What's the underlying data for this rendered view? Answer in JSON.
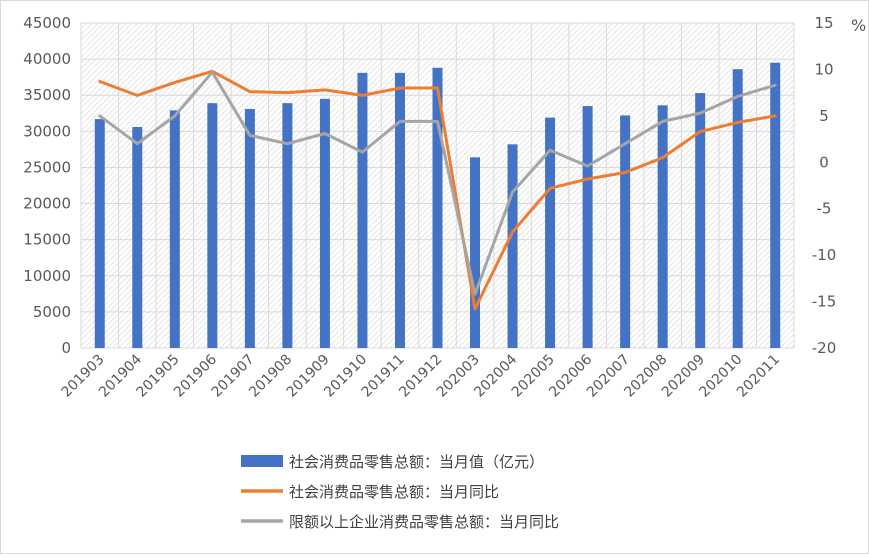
{
  "chart_data": {
    "type": "bar+line",
    "title": "",
    "categories": [
      "201903",
      "201904",
      "201905",
      "201906",
      "201907",
      "201908",
      "201909",
      "201910",
      "201911",
      "201912",
      "202003",
      "202004",
      "202005",
      "202006",
      "202007",
      "202008",
      "202009",
      "202010",
      "202011"
    ],
    "y_left": {
      "label": "",
      "ylim": [
        0,
        45000
      ],
      "ticks": [
        "0",
        "5000",
        "10000",
        "15000",
        "20000",
        "25000",
        "30000",
        "35000",
        "40000",
        "45000"
      ]
    },
    "y_right": {
      "label": "%",
      "ylim": [
        -20,
        15
      ],
      "ticks": [
        "-20",
        "-15",
        "-10",
        "-5",
        "0",
        "5",
        "10",
        "15"
      ]
    },
    "grid": true,
    "legend_position": "bottom",
    "series": [
      {
        "name": "社会消费品零售总额：当月值（亿元）",
        "type": "bar",
        "axis": "left",
        "color": "#4472C4",
        "values": [
          31700,
          30600,
          32900,
          33900,
          33100,
          33900,
          34500,
          38100,
          38100,
          38800,
          26400,
          28200,
          31900,
          33500,
          32200,
          33600,
          35300,
          38600,
          39500
        ]
      },
      {
        "name": "社会消费品零售总额：当月同比",
        "type": "line",
        "axis": "right",
        "color": "#ED7D31",
        "values": [
          8.7,
          7.2,
          8.6,
          9.8,
          7.6,
          7.5,
          7.8,
          7.2,
          8.0,
          8.0,
          -15.8,
          -7.5,
          -2.8,
          -1.8,
          -1.1,
          0.5,
          3.3,
          4.3,
          5.0
        ]
      },
      {
        "name": "限额以上企业消费品零售总额：当月同比",
        "type": "line",
        "axis": "right",
        "color": "#A5A5A5",
        "values": [
          5.0,
          2.0,
          5.0,
          9.7,
          2.9,
          2.0,
          3.1,
          1.1,
          4.4,
          4.4,
          -14.2,
          -3.2,
          1.3,
          -0.4,
          2.0,
          4.4,
          5.3,
          7.1,
          8.3
        ]
      }
    ]
  }
}
